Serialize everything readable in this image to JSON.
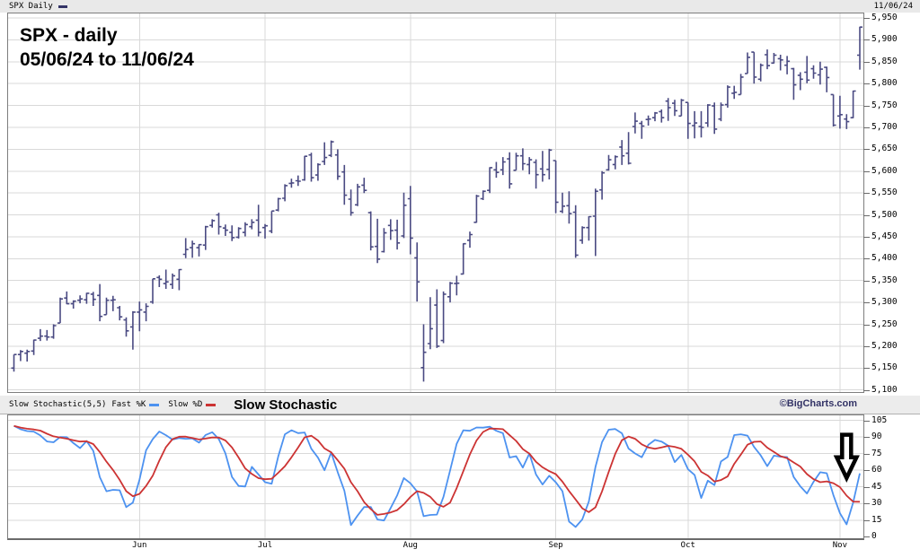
{
  "header": {
    "symbol_label": "SPX Daily",
    "date": "11/06/24"
  },
  "price_panel_title": {
    "line1": "SPX - daily",
    "line2": "05/06/24 to 11/06/24"
  },
  "indicator_bar": {
    "indicator_label": "Slow Stochastic(5,5)",
    "fast_k_label": "Fast %K",
    "slow_d_label": "Slow %D",
    "panel_title": "Slow Stochastic",
    "credit": "©BigCharts.com"
  },
  "colors": {
    "bar": "#4a4a82",
    "fast_k": "#4d92f0",
    "slow_d": "#cc3333",
    "grid": "#d9d9d9",
    "panel_border": "#7e7e7e",
    "strip_bg": "#ececec",
    "credit": "#333366",
    "price_swatch": "#333366",
    "annotation_stroke": "#000000",
    "annotation_fill": "#ffffff"
  },
  "chart_data": [
    {
      "type": "ohlc-bar",
      "title": "SPX - daily",
      "date_range": "05/06/24 to 11/06/24",
      "ylim": [
        5100,
        5950
      ],
      "y_tick_step": 50,
      "y_tick_labels": [
        "5,950",
        "5,900",
        "5,850",
        "5,800",
        "5,750",
        "5,700",
        "5,650",
        "5,600",
        "5,550",
        "5,500",
        "5,450",
        "5,400",
        "5,350",
        "5,300",
        "5,250",
        "5,200",
        "5,150",
        "5,100"
      ],
      "x_month_ticks": [
        {
          "label": "Jun",
          "day_index": 19
        },
        {
          "label": "Jul",
          "day_index": 38
        },
        {
          "label": "Aug",
          "day_index": 60
        },
        {
          "label": "Sep",
          "day_index": 82
        },
        {
          "label": "Oct",
          "day_index": 102
        },
        {
          "label": "Nov",
          "day_index": 125
        }
      ],
      "dates": [
        "05/06",
        "05/07",
        "05/08",
        "05/09",
        "05/10",
        "05/13",
        "05/14",
        "05/15",
        "05/16",
        "05/17",
        "05/20",
        "05/21",
        "05/22",
        "05/23",
        "05/24",
        "05/28",
        "05/29",
        "05/30",
        "05/31",
        "06/03",
        "06/04",
        "06/05",
        "06/06",
        "06/07",
        "06/10",
        "06/11",
        "06/12",
        "06/13",
        "06/14",
        "06/17",
        "06/18",
        "06/20",
        "06/21",
        "06/24",
        "06/25",
        "06/26",
        "06/27",
        "06/28",
        "07/01",
        "07/02",
        "07/03",
        "07/05",
        "07/08",
        "07/09",
        "07/10",
        "07/11",
        "07/12",
        "07/15",
        "07/16",
        "07/17",
        "07/18",
        "07/19",
        "07/22",
        "07/23",
        "07/24",
        "07/25",
        "07/26",
        "07/29",
        "07/30",
        "07/31",
        "08/01",
        "08/02",
        "08/05",
        "08/06",
        "08/07",
        "08/08",
        "08/09",
        "08/12",
        "08/13",
        "08/14",
        "08/15",
        "08/16",
        "08/19",
        "08/20",
        "08/21",
        "08/22",
        "08/23",
        "08/26",
        "08/27",
        "08/28",
        "08/29",
        "08/30",
        "09/03",
        "09/04",
        "09/05",
        "09/06",
        "09/09",
        "09/10",
        "09/11",
        "09/12",
        "09/13",
        "09/16",
        "09/17",
        "09/18",
        "09/19",
        "09/20",
        "09/23",
        "09/24",
        "09/25",
        "09/26",
        "09/27",
        "09/30",
        "10/01",
        "10/02",
        "10/03",
        "10/04",
        "10/07",
        "10/08",
        "10/09",
        "10/10",
        "10/11",
        "10/14",
        "10/15",
        "10/16",
        "10/17",
        "10/18",
        "10/21",
        "10/22",
        "10/23",
        "10/24",
        "10/25",
        "10/28",
        "10/29",
        "10/30",
        "10/31",
        "11/01",
        "11/04",
        "11/05",
        "11/06"
      ],
      "open": [
        5150,
        5181,
        5184,
        5189,
        5218,
        5223,
        5221,
        5253,
        5310,
        5297,
        5305,
        5306,
        5319,
        5316,
        5272,
        5305,
        5288,
        5260,
        5244,
        5278,
        5278,
        5301,
        5357,
        5343,
        5341,
        5353,
        5410,
        5425,
        5425,
        5431,
        5476,
        5500,
        5470,
        5460,
        5449,
        5460,
        5473,
        5488,
        5471,
        5463,
        5511,
        5538,
        5572,
        5578,
        5580,
        5637,
        5591,
        5622,
        5636,
        5637,
        5598,
        5536,
        5523,
        5568,
        5505,
        5428,
        5416,
        5476,
        5465,
        5452,
        5537,
        5402,
        5151,
        5206,
        5294,
        5213,
        5313,
        5343,
        5365,
        5442,
        5483,
        5537,
        5556,
        5603,
        5603,
        5628,
        5602,
        5635,
        5615,
        5620,
        5605,
        5604,
        5624,
        5508,
        5521,
        5506,
        5442,
        5471,
        5497,
        5557,
        5603,
        5615,
        5655,
        5641,
        5702,
        5709,
        5718,
        5722,
        5736,
        5760,
        5755,
        5726,
        5757,
        5704,
        5702,
        5710,
        5749,
        5719,
        5752,
        5778,
        5775,
        5823,
        5872,
        5810,
        5866,
        5847,
        5857,
        5842,
        5834,
        5819,
        5826,
        5834,
        5820,
        5837,
        5775,
        5726,
        5719,
        5722,
        5865
      ],
      "high": [
        5181,
        5191,
        5192,
        5215,
        5239,
        5237,
        5250,
        5311,
        5325,
        5305,
        5316,
        5322,
        5324,
        5342,
        5311,
        5315,
        5292,
        5266,
        5280,
        5302,
        5298,
        5354,
        5362,
        5375,
        5366,
        5376,
        5447,
        5441,
        5433,
        5475,
        5490,
        5505,
        5478,
        5476,
        5472,
        5483,
        5490,
        5523,
        5479,
        5509,
        5539,
        5570,
        5583,
        5590,
        5635,
        5642,
        5618,
        5666,
        5670,
        5650,
        5614,
        5558,
        5571,
        5585,
        5508,
        5491,
        5470,
        5490,
        5489,
        5551,
        5566,
        5437,
        5250,
        5312,
        5330,
        5325,
        5347,
        5361,
        5435,
        5462,
        5546,
        5556,
        5609,
        5621,
        5632,
        5643,
        5642,
        5652,
        5632,
        5627,
        5646,
        5651,
        5624,
        5551,
        5554,
        5522,
        5474,
        5497,
        5560,
        5600,
        5637,
        5636,
        5671,
        5689,
        5734,
        5715,
        5727,
        5735,
        5741,
        5767,
        5763,
        5765,
        5757,
        5737,
        5737,
        5753,
        5757,
        5757,
        5796,
        5795,
        5822,
        5871,
        5872,
        5846,
        5878,
        5870,
        5866,
        5863,
        5836,
        5826,
        5863,
        5842,
        5850,
        5839,
        5775,
        5772,
        5730,
        5784,
        5930
      ],
      "low": [
        5142,
        5166,
        5165,
        5180,
        5212,
        5213,
        5217,
        5253,
        5296,
        5286,
        5298,
        5297,
        5292,
        5257,
        5272,
        5280,
        5259,
        5222,
        5192,
        5234,
        5257,
        5297,
        5335,
        5331,
        5331,
        5328,
        5401,
        5402,
        5405,
        5420,
        5471,
        5455,
        5452,
        5440,
        5446,
        5451,
        5467,
        5451,
        5446,
        5458,
        5508,
        5531,
        5562,
        5566,
        5578,
        5576,
        5578,
        5614,
        5632,
        5580,
        5523,
        5498,
        5520,
        5550,
        5419,
        5390,
        5414,
        5443,
        5421,
        5447,
        5410,
        5302,
        5119,
        5193,
        5196,
        5207,
        5300,
        5316,
        5364,
        5425,
        5482,
        5534,
        5550,
        5585,
        5591,
        5560,
        5602,
        5602,
        5593,
        5560,
        5576,
        5581,
        5504,
        5504,
        5480,
        5402,
        5434,
        5441,
        5406,
        5535,
        5601,
        5604,
        5614,
        5615,
        5686,
        5674,
        5704,
        5714,
        5711,
        5715,
        5726,
        5726,
        5674,
        5675,
        5677,
        5701,
        5685,
        5714,
        5745,
        5765,
        5775,
        5823,
        5800,
        5805,
        5833,
        5846,
        5830,
        5821,
        5763,
        5785,
        5801,
        5811,
        5798,
        5780,
        5702,
        5697,
        5696,
        5721,
        5832
      ],
      "close": [
        5181,
        5188,
        5188,
        5214,
        5223,
        5221,
        5247,
        5308,
        5297,
        5303,
        5308,
        5321,
        5307,
        5268,
        5305,
        5306,
        5267,
        5235,
        5278,
        5283,
        5291,
        5354,
        5353,
        5347,
        5361,
        5375,
        5421,
        5434,
        5432,
        5473,
        5487,
        5473,
        5465,
        5448,
        5469,
        5478,
        5483,
        5460,
        5475,
        5509,
        5537,
        5567,
        5573,
        5577,
        5634,
        5585,
        5615,
        5631,
        5667,
        5588,
        5545,
        5505,
        5564,
        5556,
        5427,
        5399,
        5459,
        5464,
        5436,
        5522,
        5447,
        5347,
        5186,
        5240,
        5200,
        5319,
        5344,
        5344,
        5434,
        5455,
        5543,
        5554,
        5608,
        5597,
        5621,
        5571,
        5635,
        5617,
        5626,
        5592,
        5592,
        5648,
        5529,
        5520,
        5503,
        5408,
        5471,
        5496,
        5554,
        5596,
        5626,
        5633,
        5635,
        5618,
        5714,
        5703,
        5719,
        5733,
        5722,
        5745,
        5738,
        5762,
        5709,
        5710,
        5700,
        5751,
        5696,
        5751,
        5792,
        5780,
        5815,
        5860,
        5815,
        5842,
        5841,
        5865,
        5854,
        5851,
        5797,
        5810,
        5808,
        5824,
        5833,
        5814,
        5705,
        5729,
        5713,
        5783,
        5929
      ]
    },
    {
      "type": "line",
      "title": "Slow Stochastic",
      "params": {
        "k_period": 5,
        "k_smoothing": 3,
        "d_period": 5
      },
      "ylim": [
        0,
        105
      ],
      "y_ticks": [
        105,
        90,
        75,
        60,
        45,
        30,
        15,
        0
      ],
      "series": [
        {
          "name": "Fast %K",
          "color": "#4d92f0",
          "derived_from": "price ohlc"
        },
        {
          "name": "Slow %D",
          "color": "#cc3333",
          "derived_from": "sma of Fast %K"
        }
      ],
      "annotation": {
        "shape": "down-arrow",
        "day_index": 126,
        "top_value": 92,
        "tip_value": 53,
        "note": "points to early-November stochastic upturn"
      }
    }
  ]
}
